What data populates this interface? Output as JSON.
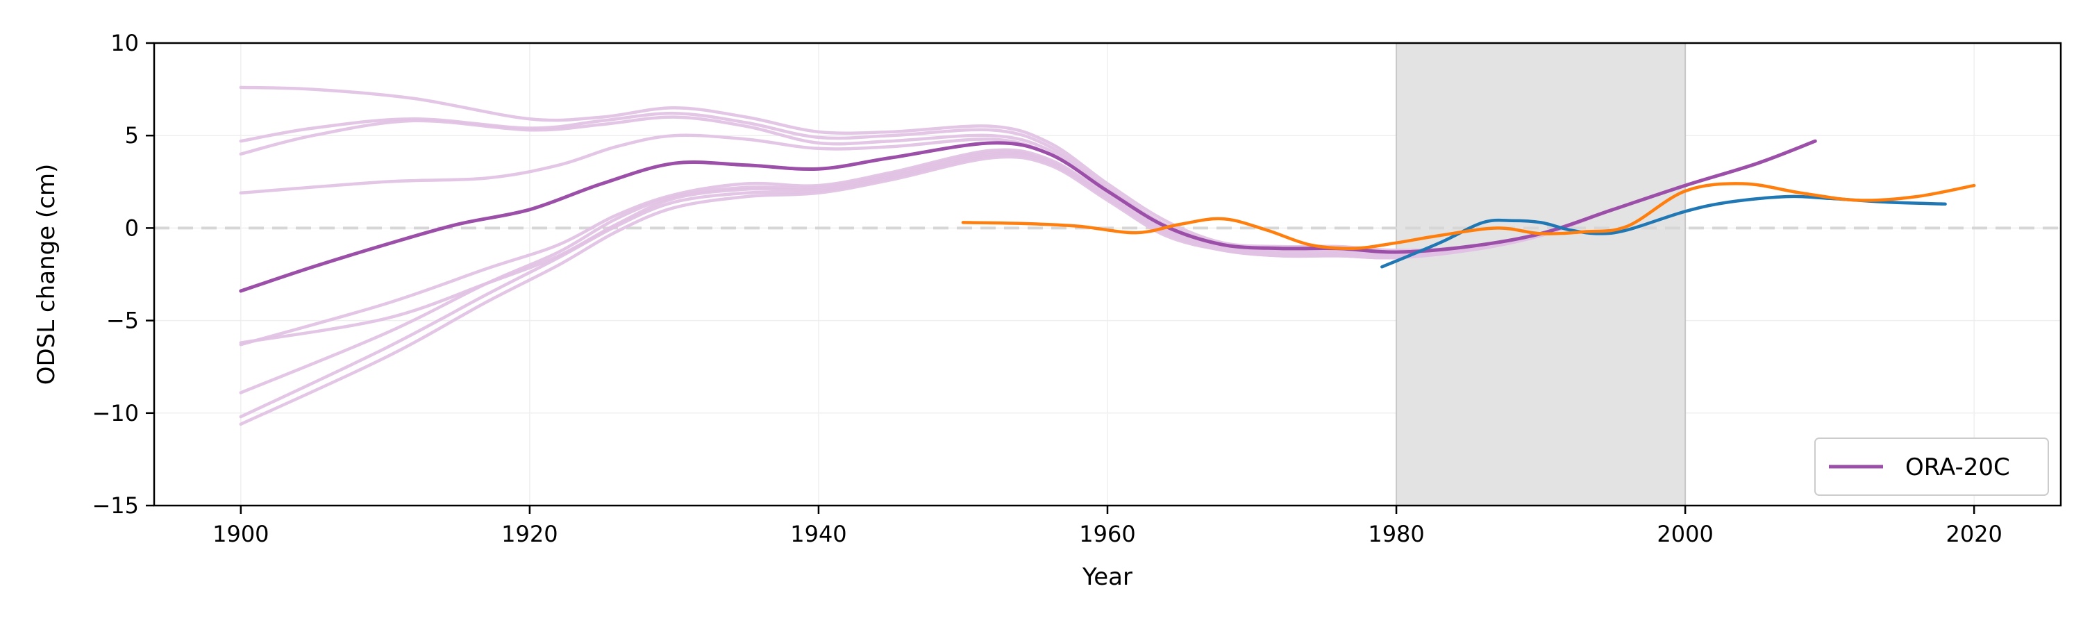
{
  "chart_data": {
    "type": "line",
    "xlabel": "Year",
    "ylabel": "ODSL change (cm)",
    "xlim": [
      1894,
      2026
    ],
    "ylim": [
      -15,
      10
    ],
    "xticks": [
      1900,
      1920,
      1940,
      1960,
      1980,
      2000,
      2020
    ],
    "yticks": [
      -15,
      -10,
      -5,
      0,
      5,
      10
    ],
    "grid": true,
    "zero_line": true,
    "shaded_period": [
      1980,
      2000
    ],
    "legend": {
      "placement": "bottom-right",
      "entries": [
        {
          "label": "ORA-20C",
          "color": "#9c4fa8"
        }
      ]
    },
    "colors": {
      "ora20c": "#9c4fa8",
      "ora20c_members": "#e2c2e4",
      "ora20c_mean": "#8a1c8a",
      "blue": "#1f77b4",
      "orange": "#ff7f0e",
      "shade": "#e3e3e3"
    },
    "ensemble_members": [
      {
        "x": [
          1900,
          1905,
          1912,
          1920,
          1925,
          1930,
          1935,
          1940,
          1945,
          1952,
          1956,
          1960,
          1964,
          1968,
          1972,
          1976,
          1980,
          1985,
          1990,
          1995,
          2000,
          2005,
          2009
        ],
        "y": [
          7.6,
          7.5,
          7.0,
          5.9,
          6.0,
          6.5,
          6.0,
          5.2,
          5.2,
          5.5,
          4.6,
          2.4,
          0.4,
          -0.8,
          -1.0,
          -1.0,
          -1.2,
          -1.0,
          -0.3,
          1.0,
          2.3,
          3.5,
          4.7
        ]
      },
      {
        "x": [
          1900,
          1905,
          1912,
          1920,
          1925,
          1930,
          1935,
          1940,
          1945,
          1952,
          1956,
          1960,
          1964,
          1968,
          1972,
          1976,
          1980,
          1985,
          1990,
          1995,
          2000,
          2005,
          2009
        ],
        "y": [
          4.7,
          5.4,
          5.9,
          5.4,
          5.8,
          6.2,
          5.7,
          4.9,
          5.0,
          5.3,
          4.4,
          2.2,
          0.2,
          -0.9,
          -1.1,
          -1.1,
          -1.3,
          -1.0,
          -0.3,
          1.0,
          2.3,
          3.5,
          4.7
        ]
      },
      {
        "x": [
          1900,
          1905,
          1912,
          1920,
          1925,
          1930,
          1935,
          1940,
          1945,
          1952,
          1956,
          1960,
          1964,
          1968,
          1972,
          1976,
          1980,
          1985,
          1990,
          1995,
          2000,
          2005,
          2009
        ],
        "y": [
          4.0,
          5.0,
          5.8,
          5.3,
          5.6,
          6.0,
          5.5,
          4.6,
          4.7,
          5.0,
          4.2,
          2.1,
          0.1,
          -1.0,
          -1.2,
          -1.2,
          -1.4,
          -1.1,
          -0.3,
          1.0,
          2.3,
          3.5,
          4.7
        ]
      },
      {
        "x": [
          1900,
          1910,
          1917,
          1922,
          1926,
          1930,
          1935,
          1940,
          1945,
          1952,
          1956,
          1960,
          1964,
          1968,
          1972,
          1976,
          1980,
          1985,
          1990,
          1995,
          2000,
          2005,
          2009
        ],
        "y": [
          1.9,
          2.5,
          2.7,
          3.4,
          4.4,
          5.0,
          4.8,
          4.3,
          4.4,
          4.8,
          4.0,
          2.0,
          0.0,
          -1.0,
          -1.3,
          -1.3,
          -1.4,
          -1.1,
          -0.3,
          1.0,
          2.3,
          3.5,
          4.7
        ]
      },
      {
        "x": [
          1900,
          1910,
          1917,
          1922,
          1926,
          1930,
          1935,
          1940,
          1945,
          1952,
          1956,
          1960,
          1964,
          1968,
          1972,
          1976,
          1980,
          1985,
          1990,
          1995,
          2000,
          2005,
          2009
        ],
        "y": [
          -6.2,
          -4.9,
          -3.0,
          -1.5,
          0.2,
          1.6,
          2.1,
          2.1,
          2.8,
          4.0,
          3.6,
          1.7,
          -0.2,
          -1.1,
          -1.4,
          -1.4,
          -1.5,
          -1.2,
          -0.4,
          1.0,
          2.3,
          3.5,
          4.7
        ]
      },
      {
        "x": [
          1900,
          1910,
          1917,
          1922,
          1926,
          1930,
          1935,
          1940,
          1945,
          1952,
          1956,
          1960,
          1964,
          1968,
          1972,
          1976,
          1980,
          1985,
          1990,
          1995,
          2000,
          2005,
          2009
        ],
        "y": [
          -6.3,
          -4.1,
          -2.2,
          -0.9,
          0.7,
          1.8,
          2.4,
          2.3,
          3.0,
          4.2,
          3.7,
          1.8,
          -0.1,
          -1.1,
          -1.4,
          -1.4,
          -1.5,
          -1.2,
          -0.4,
          1.0,
          2.3,
          3.5,
          4.7
        ]
      },
      {
        "x": [
          1900,
          1910,
          1917,
          1922,
          1926,
          1930,
          1935,
          1940,
          1945,
          1952,
          1956,
          1960,
          1964,
          1968,
          1972,
          1976,
          1980,
          1985,
          1990,
          1995,
          2000,
          2005,
          2009
        ],
        "y": [
          -8.9,
          -5.7,
          -3.0,
          -1.3,
          0.5,
          1.7,
          2.2,
          2.2,
          2.9,
          4.1,
          3.6,
          1.7,
          -0.2,
          -1.1,
          -1.4,
          -1.4,
          -1.5,
          -1.2,
          -0.4,
          1.0,
          2.3,
          3.5,
          4.7
        ]
      },
      {
        "x": [
          1900,
          1910,
          1917,
          1922,
          1926,
          1930,
          1935,
          1940,
          1945,
          1952,
          1956,
          1960,
          1964,
          1968,
          1972,
          1976,
          1980,
          1985,
          1990,
          1995,
          2000,
          2005,
          2009
        ],
        "y": [
          -10.2,
          -6.5,
          -3.6,
          -1.6,
          0.1,
          1.4,
          1.9,
          2.0,
          2.7,
          3.9,
          3.5,
          1.6,
          -0.3,
          -1.2,
          -1.5,
          -1.5,
          -1.6,
          -1.2,
          -0.4,
          1.0,
          2.3,
          3.5,
          4.7
        ]
      },
      {
        "x": [
          1900,
          1910,
          1917,
          1922,
          1926,
          1930,
          1935,
          1940,
          1945,
          1952,
          1956,
          1960,
          1964,
          1968,
          1972,
          1976,
          1980,
          1985,
          1990,
          1995,
          2000,
          2005,
          2009
        ],
        "y": [
          -10.6,
          -7.0,
          -4.0,
          -2.0,
          -0.2,
          1.1,
          1.7,
          1.9,
          2.6,
          3.8,
          3.4,
          1.5,
          -0.4,
          -1.2,
          -1.5,
          -1.5,
          -1.6,
          -1.2,
          -0.4,
          1.0,
          2.3,
          3.5,
          4.7
        ]
      }
    ],
    "ensemble_mean": {
      "x": [
        1900,
        1905,
        1910,
        1915,
        1920,
        1925,
        1930,
        1935,
        1940,
        1945,
        1952,
        1956,
        1960,
        1964,
        1968,
        1972,
        1976,
        1980,
        1985,
        1990,
        1995,
        2000,
        2005,
        2009
      ],
      "y": [
        -3.4,
        -2.1,
        -0.9,
        0.2,
        1.0,
        2.4,
        3.5,
        3.4,
        3.2,
        3.8,
        4.6,
        4.0,
        2.0,
        0.1,
        -0.9,
        -1.1,
        -1.1,
        -1.3,
        -1.0,
        -0.3,
        1.0,
        2.3,
        3.5,
        4.7
      ]
    },
    "series": [
      {
        "color": "blue",
        "x": [
          1979,
          1983,
          1986,
          1988,
          1990,
          1992,
          1994,
          1996,
          2000,
          2003,
          2007,
          2010,
          2014,
          2018
        ],
        "y": [
          -2.1,
          -0.8,
          0.3,
          0.4,
          0.3,
          -0.1,
          -0.3,
          -0.1,
          0.9,
          1.4,
          1.7,
          1.6,
          1.4,
          1.3
        ]
      },
      {
        "color": "orange",
        "x": [
          1950,
          1954,
          1958,
          1962,
          1965,
          1968,
          1971,
          1974,
          1977,
          1980,
          1983,
          1987,
          1990,
          1993,
          1996,
          2000,
          2004,
          2008,
          2012,
          2016,
          2020
        ],
        "y": [
          0.3,
          0.25,
          0.1,
          -0.25,
          0.2,
          0.5,
          -0.1,
          -0.9,
          -1.1,
          -0.8,
          -0.4,
          0.0,
          -0.3,
          -0.2,
          0.1,
          2.0,
          2.4,
          1.9,
          1.5,
          1.7,
          2.3
        ]
      }
    ]
  }
}
